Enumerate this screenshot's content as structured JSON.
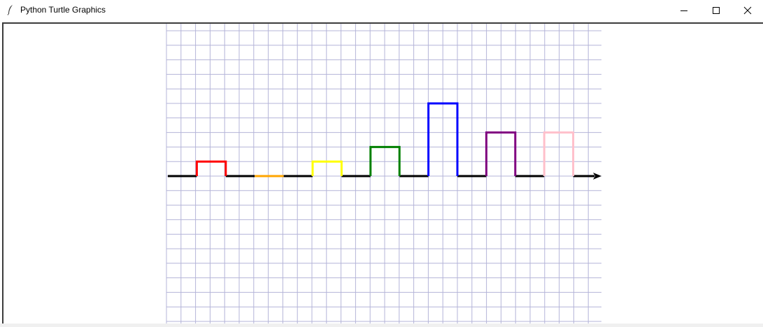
{
  "window": {
    "title": "Python Turtle Graphics",
    "icon": "feather-icon",
    "controls": [
      "minimize-icon",
      "maximize-icon",
      "close-icon"
    ]
  },
  "canvas": {
    "background": "#ffffff",
    "grid_color": "#b4b4d8",
    "baseline_color": "#000000",
    "arrow_color": "#000000"
  },
  "pulses": [
    {
      "color": "#ff0000",
      "height": 1
    },
    {
      "color": "#ffa500",
      "height": 0
    },
    {
      "color": "#ffff00",
      "height": 1
    },
    {
      "color": "#008000",
      "height": 2
    },
    {
      "color": "#0000ff",
      "height": 5
    },
    {
      "color": "#800080",
      "height": 3
    },
    {
      "color": "#ffc0cb",
      "height": 3
    }
  ]
}
